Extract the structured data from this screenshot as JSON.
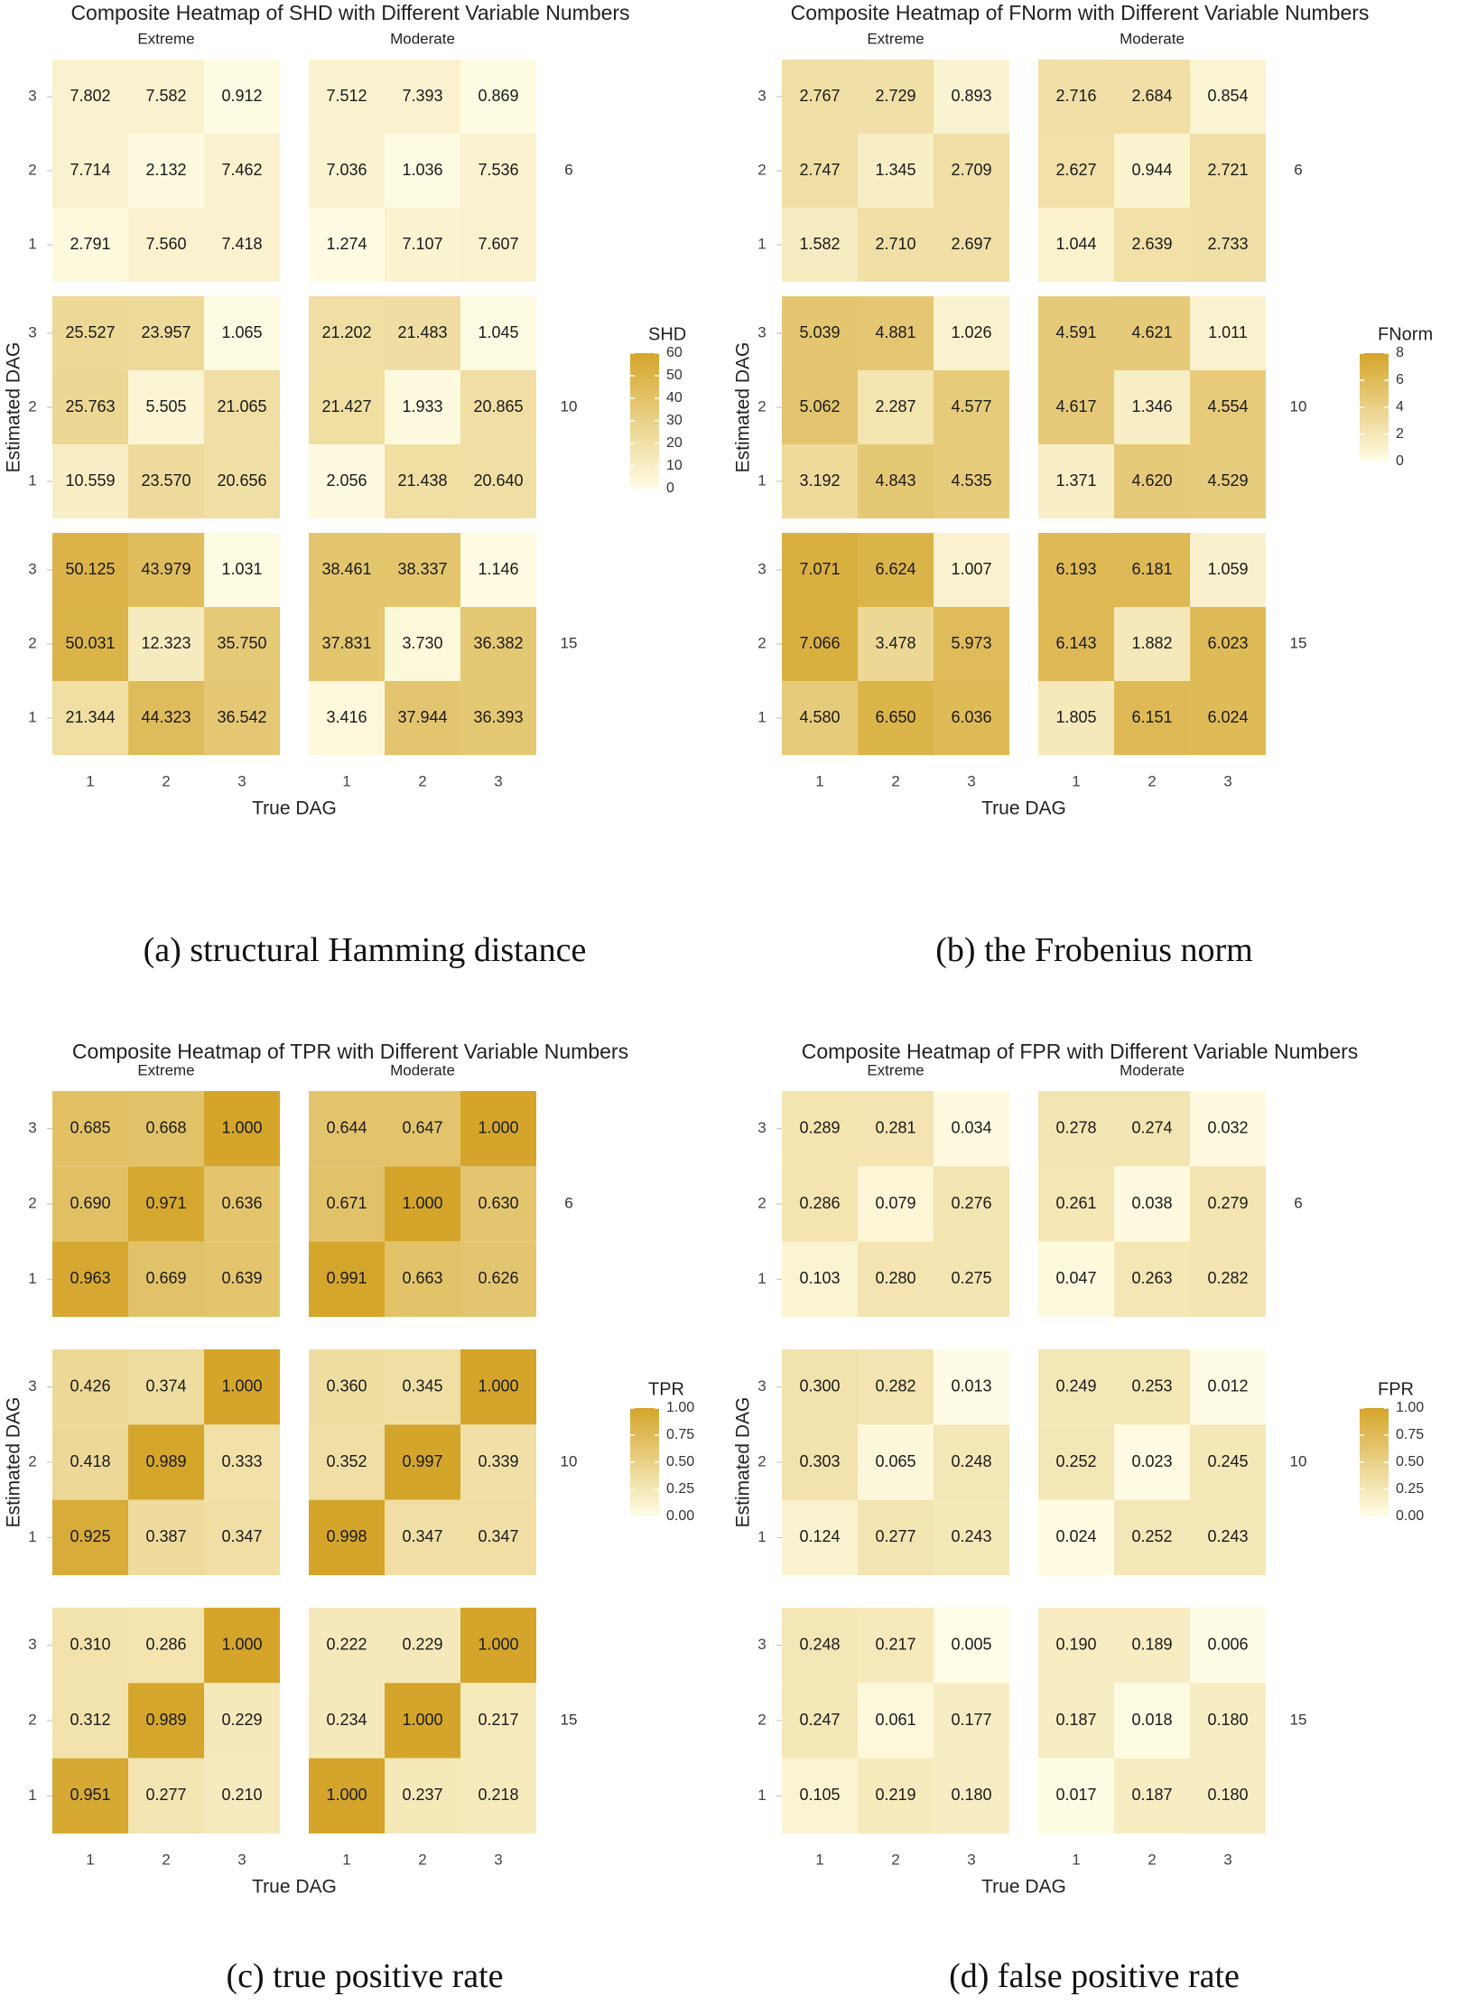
{
  "charts_meta": {
    "row_axis_label": "Estimated DAG",
    "col_axis_label": "True DAG",
    "facet_columns": [
      "Extreme",
      "Moderate"
    ],
    "facet_rows": [
      "6",
      "10",
      "15"
    ],
    "low_color": "#fffde6",
    "high_color": "#d4a52a"
  },
  "captions": {
    "a": "(a) structural Hamming distance",
    "b": "(b) the Frobenius norm",
    "c": "(c) true positive rate",
    "d": "(d) false positive rate"
  },
  "chart_data": [
    {
      "id": "a",
      "type": "heatmap",
      "title": "Composite Heatmap of SHD with Different Variable Numbers",
      "xlabel": "True DAG",
      "ylabel": "Estimated DAG",
      "x_ticks": [
        "1",
        "2",
        "3"
      ],
      "y_ticks": [
        "1",
        "2",
        "3"
      ],
      "legend_title": "SHD",
      "legend_ticks": [
        "60",
        "50",
        "40",
        "30",
        "20",
        "10",
        "0"
      ],
      "color_range": [
        0,
        60
      ],
      "facets": {
        "Extreme": {
          "6": [
            [
              "7.802",
              "7.582",
              "0.912"
            ],
            [
              "7.714",
              "2.132",
              "7.462"
            ],
            [
              "2.791",
              "7.560",
              "7.418"
            ]
          ],
          "10": [
            [
              "25.527",
              "23.957",
              "1.065"
            ],
            [
              "25.763",
              "5.505",
              "21.065"
            ],
            [
              "10.559",
              "23.570",
              "20.656"
            ]
          ],
          "15": [
            [
              "50.125",
              "43.979",
              "1.031"
            ],
            [
              "50.031",
              "12.323",
              "35.750"
            ],
            [
              "21.344",
              "44.323",
              "36.542"
            ]
          ]
        },
        "Moderate": {
          "6": [
            [
              "7.512",
              "7.393",
              "0.869"
            ],
            [
              "7.036",
              "1.036",
              "7.536"
            ],
            [
              "1.274",
              "7.107",
              "7.607"
            ]
          ],
          "10": [
            [
              "21.202",
              "21.483",
              "1.045"
            ],
            [
              "21.427",
              "1.933",
              "20.865"
            ],
            [
              "2.056",
              "21.438",
              "20.640"
            ]
          ],
          "15": [
            [
              "38.461",
              "38.337",
              "1.146"
            ],
            [
              "37.831",
              "3.730",
              "36.382"
            ],
            [
              "3.416",
              "37.944",
              "36.393"
            ]
          ]
        }
      }
    },
    {
      "id": "b",
      "type": "heatmap",
      "title": "Composite Heatmap of FNorm with Different Variable Numbers",
      "xlabel": "True DAG",
      "ylabel": "Estimated DAG",
      "x_ticks": [
        "1",
        "2",
        "3"
      ],
      "y_ticks": [
        "1",
        "2",
        "3"
      ],
      "legend_title": "FNorm",
      "legend_ticks": [
        "8",
        "6",
        "4",
        "2",
        "0"
      ],
      "color_range": [
        0,
        8
      ],
      "facets": {
        "Extreme": {
          "6": [
            [
              "2.767",
              "2.729",
              "0.893"
            ],
            [
              "2.747",
              "1.345",
              "2.709"
            ],
            [
              "1.582",
              "2.710",
              "2.697"
            ]
          ],
          "10": [
            [
              "5.039",
              "4.881",
              "1.026"
            ],
            [
              "5.062",
              "2.287",
              "4.577"
            ],
            [
              "3.192",
              "4.843",
              "4.535"
            ]
          ],
          "15": [
            [
              "7.071",
              "6.624",
              "1.007"
            ],
            [
              "7.066",
              "3.478",
              "5.973"
            ],
            [
              "4.580",
              "6.650",
              "6.036"
            ]
          ]
        },
        "Moderate": {
          "6": [
            [
              "2.716",
              "2.684",
              "0.854"
            ],
            [
              "2.627",
              "0.944",
              "2.721"
            ],
            [
              "1.044",
              "2.639",
              "2.733"
            ]
          ],
          "10": [
            [
              "4.591",
              "4.621",
              "1.011"
            ],
            [
              "4.617",
              "1.346",
              "4.554"
            ],
            [
              "1.371",
              "4.620",
              "4.529"
            ]
          ],
          "15": [
            [
              "6.193",
              "6.181",
              "1.059"
            ],
            [
              "6.143",
              "1.882",
              "6.023"
            ],
            [
              "1.805",
              "6.151",
              "6.024"
            ]
          ]
        }
      }
    },
    {
      "id": "c",
      "type": "heatmap",
      "title": "Composite Heatmap of TPR with Different Variable Numbers",
      "xlabel": "True DAG",
      "ylabel": "Estimated DAG",
      "x_ticks": [
        "1",
        "2",
        "3"
      ],
      "y_ticks": [
        "1",
        "2",
        "3"
      ],
      "legend_title": "TPR",
      "legend_ticks": [
        "1.00",
        "0.75",
        "0.50",
        "0.25",
        "0.00"
      ],
      "color_range": [
        0,
        1
      ],
      "facets": {
        "Extreme": {
          "6": [
            [
              "0.685",
              "0.668",
              "1.000"
            ],
            [
              "0.690",
              "0.971",
              "0.636"
            ],
            [
              "0.963",
              "0.669",
              "0.639"
            ]
          ],
          "10": [
            [
              "0.426",
              "0.374",
              "1.000"
            ],
            [
              "0.418",
              "0.989",
              "0.333"
            ],
            [
              "0.925",
              "0.387",
              "0.347"
            ]
          ],
          "15": [
            [
              "0.310",
              "0.286",
              "1.000"
            ],
            [
              "0.312",
              "0.989",
              "0.229"
            ],
            [
              "0.951",
              "0.277",
              "0.210"
            ]
          ]
        },
        "Moderate": {
          "6": [
            [
              "0.644",
              "0.647",
              "1.000"
            ],
            [
              "0.671",
              "1.000",
              "0.630"
            ],
            [
              "0.991",
              "0.663",
              "0.626"
            ]
          ],
          "10": [
            [
              "0.360",
              "0.345",
              "1.000"
            ],
            [
              "0.352",
              "0.997",
              "0.339"
            ],
            [
              "0.998",
              "0.347",
              "0.347"
            ]
          ],
          "15": [
            [
              "0.222",
              "0.229",
              "1.000"
            ],
            [
              "0.234",
              "1.000",
              "0.217"
            ],
            [
              "1.000",
              "0.237",
              "0.218"
            ]
          ]
        }
      }
    },
    {
      "id": "d",
      "type": "heatmap",
      "title": "Composite Heatmap of FPR with Different Variable Numbers",
      "xlabel": "True DAG",
      "ylabel": "Estimated DAG",
      "x_ticks": [
        "1",
        "2",
        "3"
      ],
      "y_ticks": [
        "1",
        "2",
        "3"
      ],
      "legend_title": "FPR",
      "legend_ticks": [
        "1.00",
        "0.75",
        "0.50",
        "0.25",
        "0.00"
      ],
      "color_range": [
        0,
        1
      ],
      "facets": {
        "Extreme": {
          "6": [
            [
              "0.289",
              "0.281",
              "0.034"
            ],
            [
              "0.286",
              "0.079",
              "0.276"
            ],
            [
              "0.103",
              "0.280",
              "0.275"
            ]
          ],
          "10": [
            [
              "0.300",
              "0.282",
              "0.013"
            ],
            [
              "0.303",
              "0.065",
              "0.248"
            ],
            [
              "0.124",
              "0.277",
              "0.243"
            ]
          ],
          "15": [
            [
              "0.248",
              "0.217",
              "0.005"
            ],
            [
              "0.247",
              "0.061",
              "0.177"
            ],
            [
              "0.105",
              "0.219",
              "0.180"
            ]
          ]
        },
        "Moderate": {
          "6": [
            [
              "0.278",
              "0.274",
              "0.032"
            ],
            [
              "0.261",
              "0.038",
              "0.279"
            ],
            [
              "0.047",
              "0.263",
              "0.282"
            ]
          ],
          "10": [
            [
              "0.249",
              "0.253",
              "0.012"
            ],
            [
              "0.252",
              "0.023",
              "0.245"
            ],
            [
              "0.024",
              "0.252",
              "0.243"
            ]
          ],
          "15": [
            [
              "0.190",
              "0.189",
              "0.006"
            ],
            [
              "0.187",
              "0.018",
              "0.180"
            ],
            [
              "0.017",
              "0.187",
              "0.180"
            ]
          ]
        }
      }
    }
  ]
}
